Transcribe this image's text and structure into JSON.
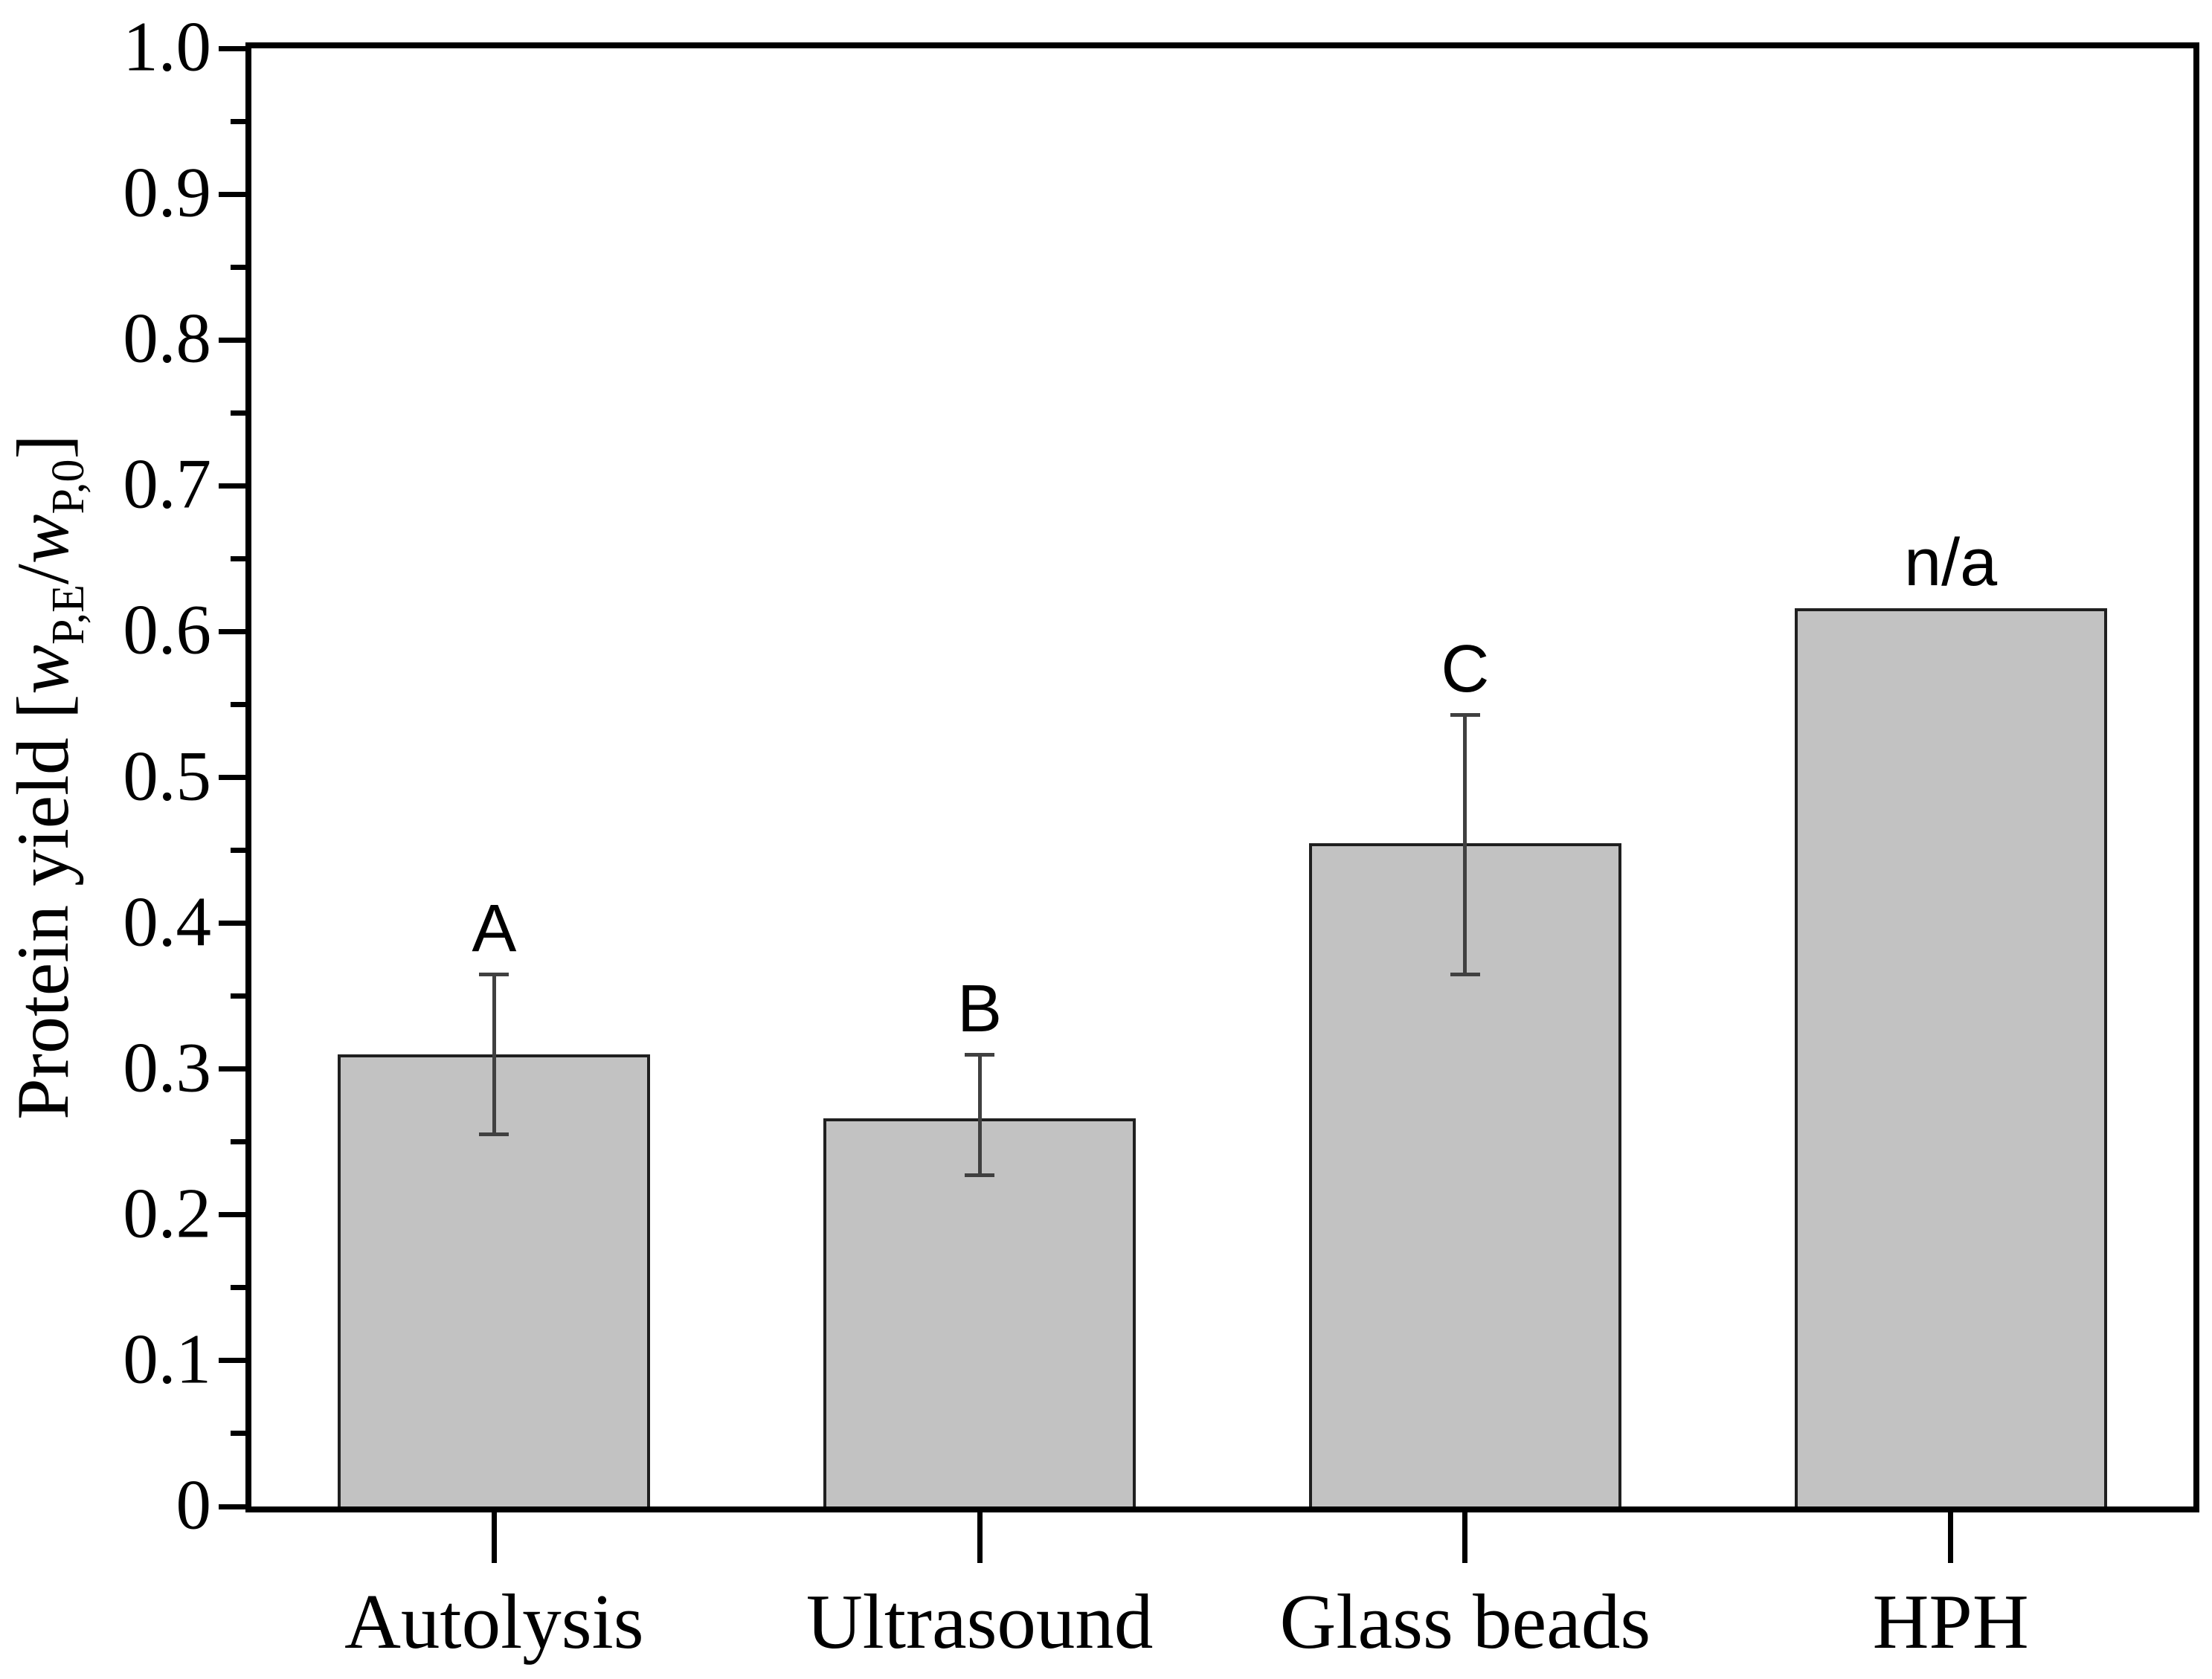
{
  "figure": {
    "y_axis_title": {
      "prefix": "Protein yield [",
      "w1": "w",
      "sub1": "P,E",
      "slash": "/",
      "w2": "w",
      "sub2": "P,0",
      "suffix": "]"
    },
    "colors": {
      "background": "#ffffff",
      "axis": "#000000",
      "text": "#000000",
      "bar_fill": "#c2c2c2",
      "bar_edge": "#1f1f1f",
      "error_bar": "#404040"
    }
  },
  "chart_data": {
    "type": "bar",
    "title": "",
    "xlabel": "",
    "ylabel": "Protein yield [w_P,E / w_P,0]",
    "categories": [
      "Autolysis",
      "Ultrasound",
      "Glass beads",
      "HPH"
    ],
    "values": [
      0.31,
      0.266,
      0.455,
      0.616
    ],
    "error_low": [
      0.255,
      0.227,
      0.365,
      null
    ],
    "error_high": [
      0.365,
      0.31,
      0.543,
      null
    ],
    "bar_labels": [
      "A",
      "B",
      "C",
      "n/a"
    ],
    "ylim": [
      0,
      1.0
    ],
    "ytick_labels": [
      "1.0",
      "0.9",
      "0.8",
      "0.7",
      "0.6",
      "0.5",
      "0.4",
      "0.3",
      "0.2",
      "0.1",
      "0"
    ],
    "ytick_values": [
      1.0,
      0.9,
      0.8,
      0.7,
      0.6,
      0.5,
      0.4,
      0.3,
      0.2,
      0.1,
      0
    ],
    "y_minor_tick_step": 0.05,
    "grid": false,
    "legend": null,
    "frame": "full-box"
  }
}
